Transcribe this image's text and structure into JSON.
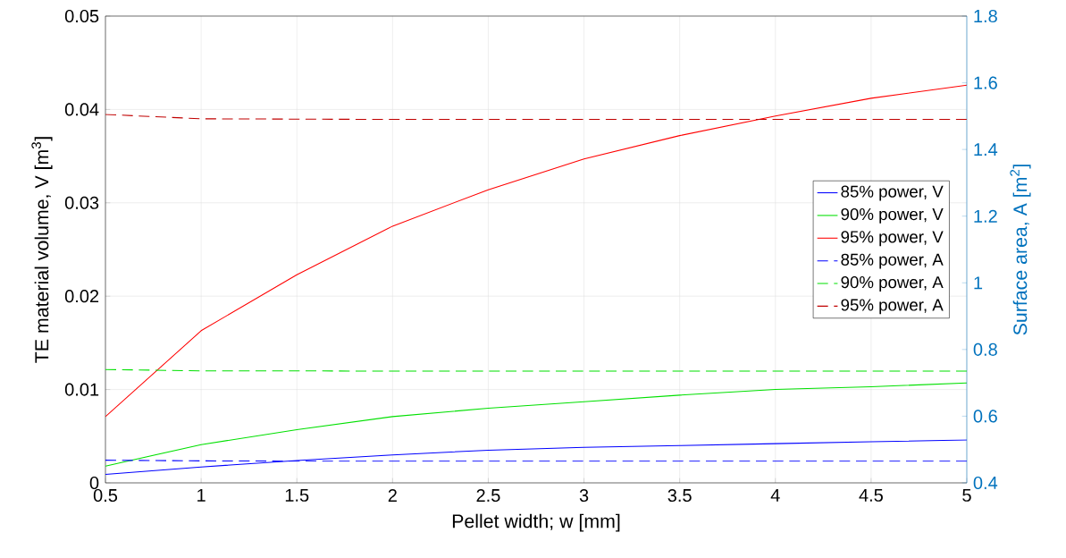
{
  "chart_data": {
    "type": "line",
    "xlabel": "Pellet width; w [mm]",
    "ylabel": "TE material volume, V [m$^{3}$]",
    "y2label": "Surface area, A [m$^{2}$]",
    "x": [
      0.5,
      1,
      1.5,
      2,
      2.5,
      3,
      3.5,
      4,
      4.5,
      5
    ],
    "xlim": [
      0.5,
      5
    ],
    "xticks": [
      0.5,
      1,
      1.5,
      2,
      2.5,
      3,
      3.5,
      4,
      4.5,
      5
    ],
    "ylim": [
      0,
      0.05
    ],
    "yticks": [
      0,
      0.01,
      0.02,
      0.03,
      0.04,
      0.05
    ],
    "y2lim": [
      0.4,
      1.8
    ],
    "y2ticks": [
      0.4,
      0.6,
      0.8,
      1,
      1.2,
      1.4,
      1.6,
      1.8
    ],
    "grid": true,
    "legend": "right",
    "series": [
      {
        "name": "85% power, V",
        "color": "#0000ff",
        "line_style": "solid",
        "values": [
          0.0009,
          0.0017,
          0.0024,
          0.003,
          0.0035,
          0.0038,
          0.004,
          0.0042,
          0.0044,
          0.0046
        ]
      },
      {
        "name": "90% power, V",
        "color": "#00e000",
        "line_style": "solid",
        "values": [
          0.0018,
          0.0041,
          0.0057,
          0.0071,
          0.008,
          0.0087,
          0.0094,
          0.01,
          0.0103,
          0.0107
        ]
      },
      {
        "name": "95% power, V",
        "color": "#ff0000",
        "line_style": "solid",
        "values": [
          0.0071,
          0.0163,
          0.0223,
          0.0275,
          0.0314,
          0.0347,
          0.0372,
          0.0393,
          0.0412,
          0.0426
        ]
      },
      {
        "name": "85% power, A",
        "color": "#0000ff",
        "line_style": "dashed",
        "axis": "y2",
        "values": [
          0.468,
          0.466,
          0.465,
          0.465,
          0.465,
          0.465,
          0.465,
          0.465,
          0.465,
          0.465
        ]
      },
      {
        "name": "90% power, A",
        "color": "#00e000",
        "line_style": "dashed",
        "axis": "y2",
        "values": [
          0.74,
          0.736,
          0.736,
          0.735,
          0.735,
          0.735,
          0.735,
          0.735,
          0.735,
          0.735
        ]
      },
      {
        "name": "95% power, A",
        "color": "#c00000",
        "line_style": "dashed",
        "axis": "y2",
        "values": [
          1.505,
          1.492,
          1.491,
          1.49,
          1.49,
          1.49,
          1.49,
          1.49,
          1.49,
          1.49
        ]
      }
    ]
  }
}
